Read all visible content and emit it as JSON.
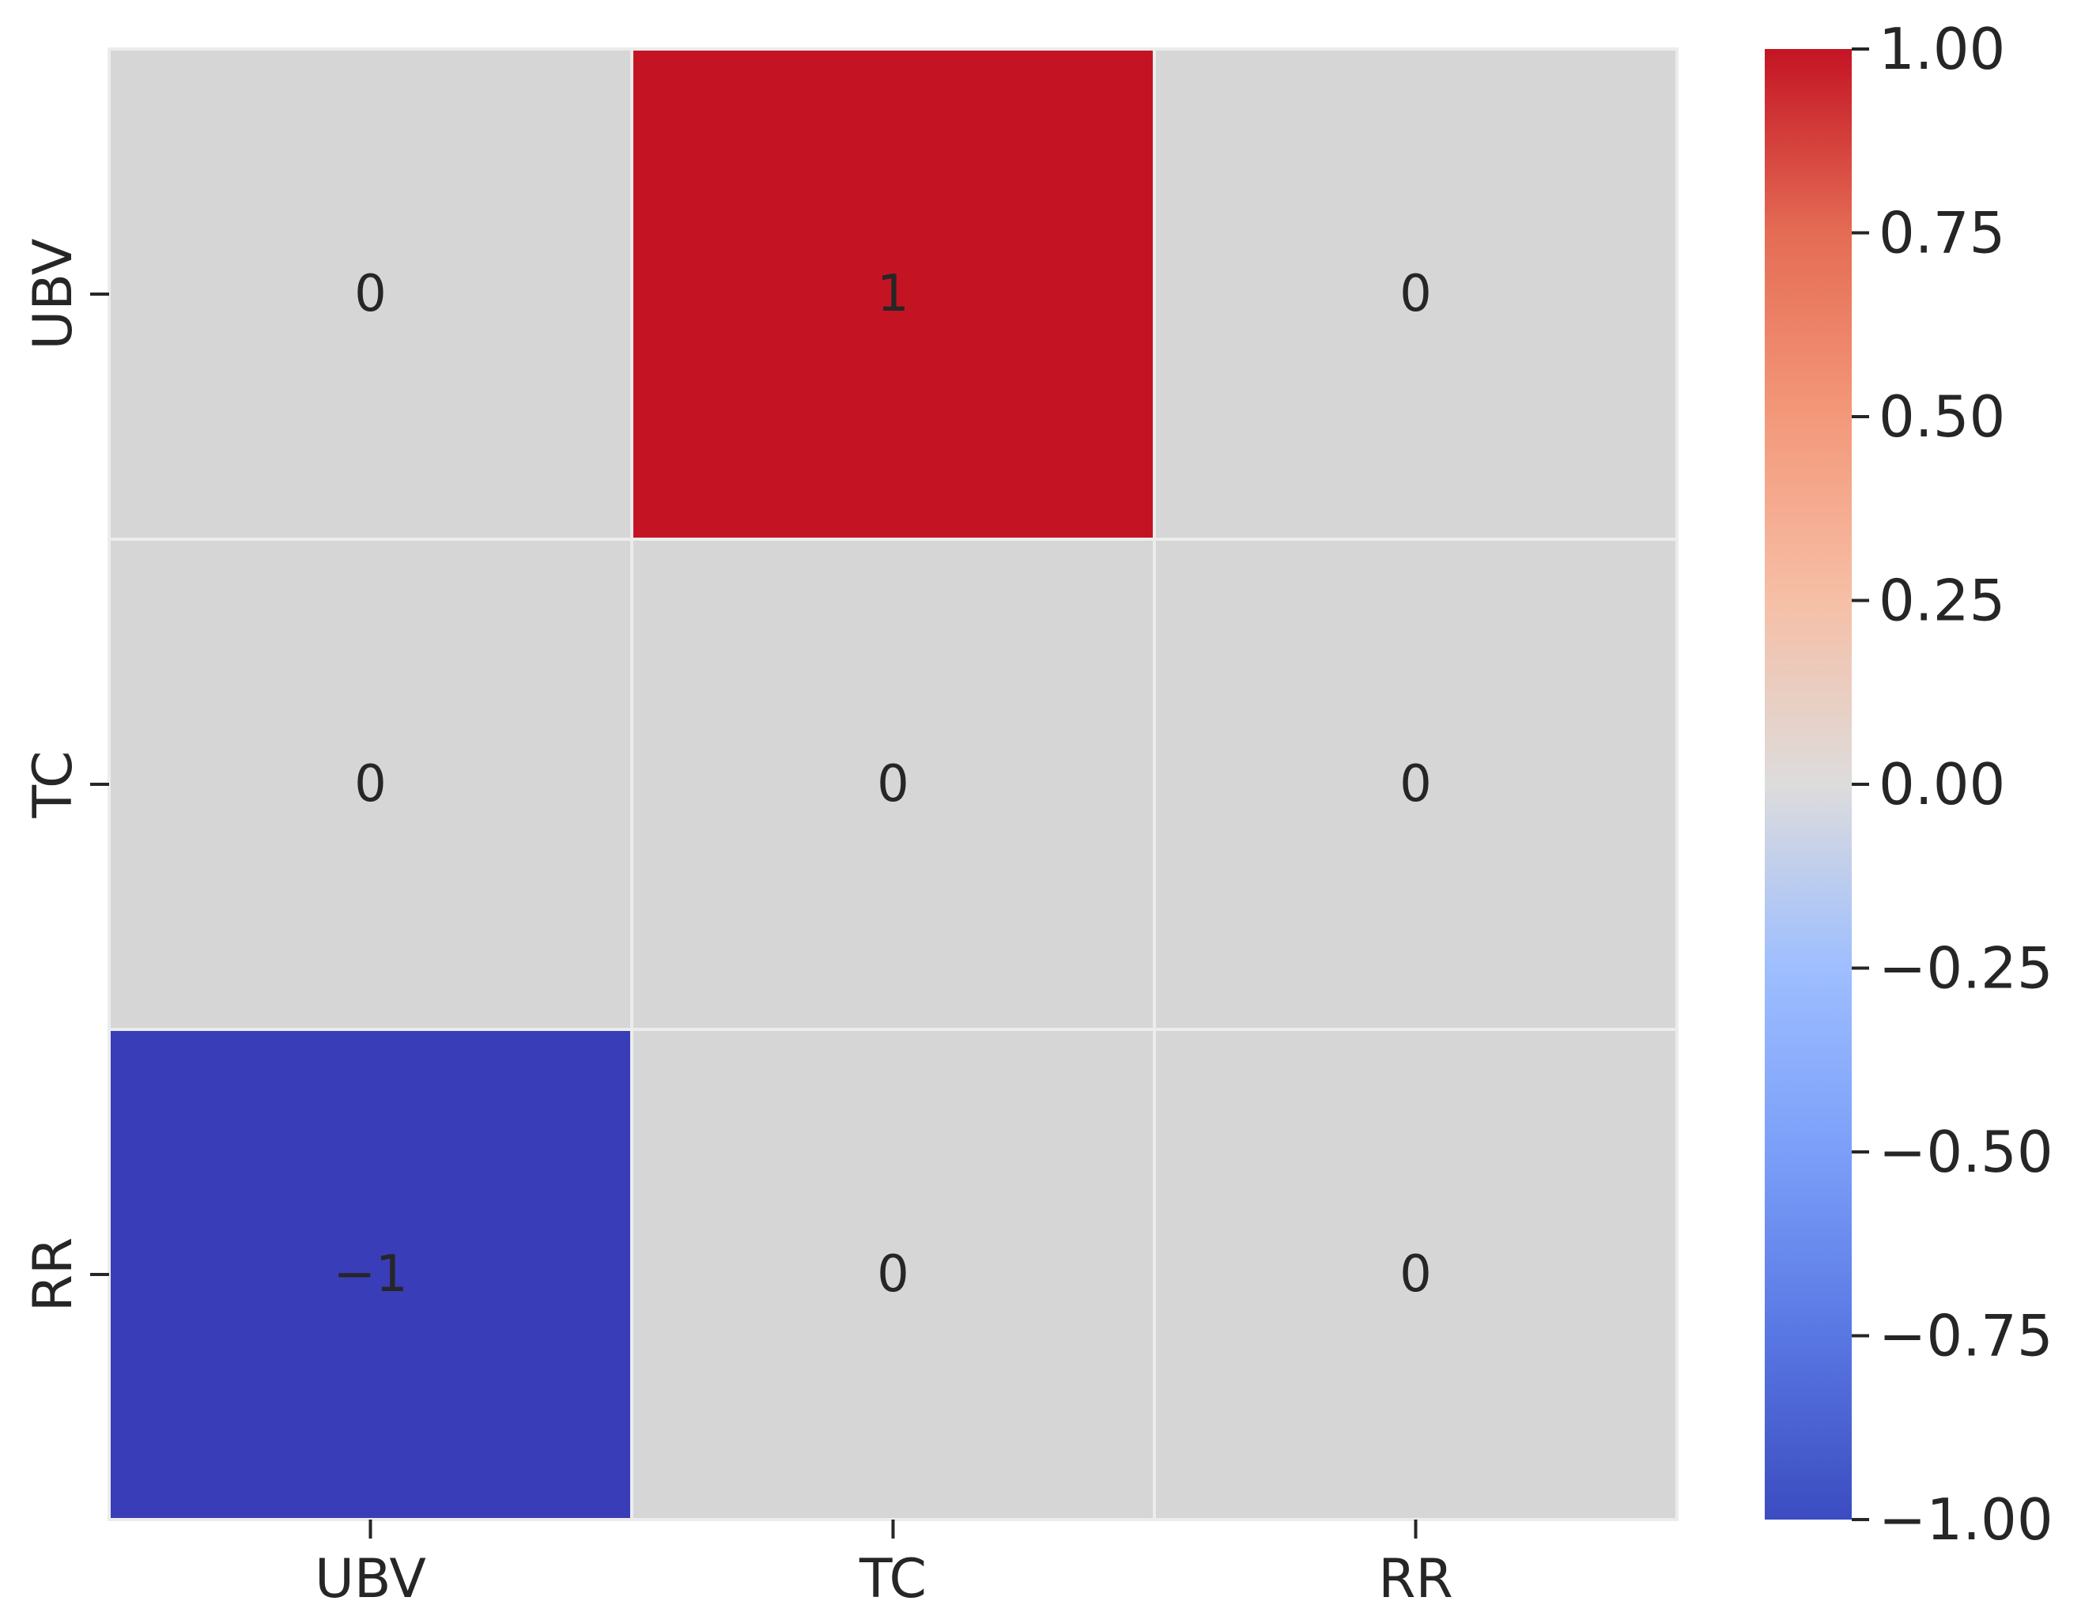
{
  "chart_data": {
    "type": "heatmap",
    "title": "",
    "xlabel": "",
    "ylabel": "",
    "x_categories": [
      "UBV",
      "TC",
      "RR"
    ],
    "y_categories": [
      "UBV",
      "TC",
      "RR"
    ],
    "matrix": [
      [
        0,
        1,
        0
      ],
      [
        0,
        0,
        0
      ],
      [
        -1,
        0,
        0
      ]
    ],
    "cell_labels": [
      [
        "0",
        "1",
        "0"
      ],
      [
        "0",
        "0",
        "0"
      ],
      [
        "−1",
        "0",
        "0"
      ]
    ],
    "colormap": "coolwarm",
    "vmin": -1,
    "vmax": 1,
    "colorbar": {
      "ticks": [
        1,
        0.75,
        0.5,
        0.25,
        0,
        -0.25,
        -0.5,
        -0.75,
        -1
      ],
      "tick_labels": [
        "1.00",
        "0.75",
        "0.50",
        "0.25",
        "0.00",
        "−0.25",
        "−0.50",
        "−0.75",
        "−1.00"
      ]
    },
    "colors": {
      "max": "#c41424",
      "mid": "#d6d6d6",
      "min": "#3a3db8",
      "grid": "#ececec",
      "dark_text": "#262626",
      "light_text": "#ffffff"
    }
  }
}
